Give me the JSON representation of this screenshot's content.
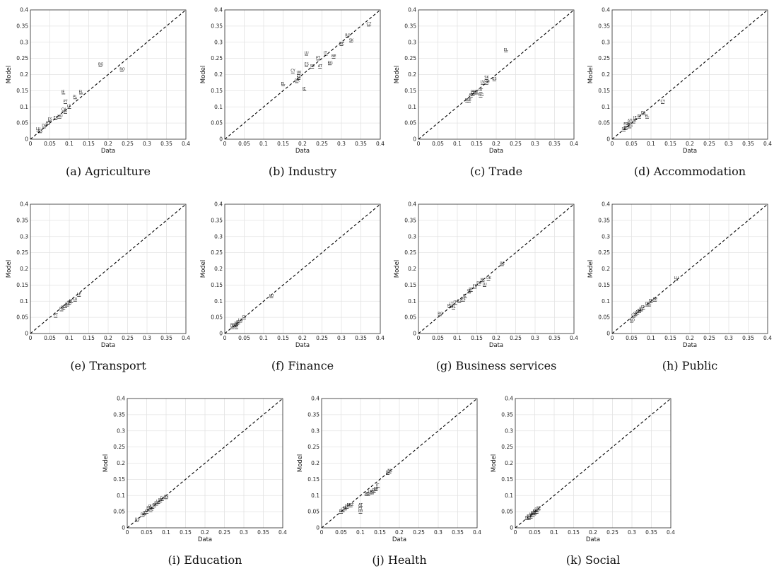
{
  "chart_data": [
    {
      "caption": "(a)  Agriculture",
      "type": "scatter",
      "xlabel": "Data",
      "ylabel": "Model",
      "xlim": [
        0,
        0.4
      ],
      "ylim": [
        0,
        0.4
      ],
      "ticks": [
        "0",
        "0.05",
        "0.1",
        "0.15",
        "0.2",
        "0.25",
        "0.3",
        "0.35",
        "0.4"
      ],
      "reference_line": "y = x (dashed)",
      "points": [
        {
          "label": "BG",
          "x": 0.18,
          "y": 0.225
        },
        {
          "label": "RO",
          "x": 0.235,
          "y": 0.21
        },
        {
          "label": "IE",
          "x": 0.085,
          "y": 0.14
        },
        {
          "label": "EL",
          "x": 0.13,
          "y": 0.14
        },
        {
          "label": "PL",
          "x": 0.115,
          "y": 0.125
        },
        {
          "label": "PT",
          "x": 0.09,
          "y": 0.11
        },
        {
          "label": "LT",
          "x": 0.1,
          "y": 0.095
        },
        {
          "label": "CY",
          "x": 0.085,
          "y": 0.085
        },
        {
          "label": "LV",
          "x": 0.09,
          "y": 0.08
        },
        {
          "label": "HU",
          "x": 0.075,
          "y": 0.065
        },
        {
          "label": "FR",
          "x": 0.065,
          "y": 0.06
        },
        {
          "label": "ES",
          "x": 0.05,
          "y": 0.055
        },
        {
          "label": "AT",
          "x": 0.045,
          "y": 0.045
        },
        {
          "label": "DE",
          "x": 0.035,
          "y": 0.035
        },
        {
          "label": "LU",
          "x": 0.02,
          "y": 0.025
        },
        {
          "label": "UK",
          "x": 0.025,
          "y": 0.02
        }
      ]
    },
    {
      "caption": "(b)  Industry",
      "type": "scatter",
      "xlabel": "Data",
      "ylabel": "Model",
      "xlim": [
        0,
        0.4
      ],
      "ylim": [
        0,
        0.4
      ],
      "ticks": [
        "0",
        "0.05",
        "0.1",
        "0.15",
        "0.2",
        "0.25",
        "0.3",
        "0.35",
        "0.4"
      ],
      "reference_line": "y = x (dashed)",
      "points": [
        {
          "label": "CZ",
          "x": 0.37,
          "y": 0.35
        },
        {
          "label": "RO",
          "x": 0.315,
          "y": 0.315
        },
        {
          "label": "SK",
          "x": 0.325,
          "y": 0.3
        },
        {
          "label": "DE",
          "x": 0.3,
          "y": 0.29
        },
        {
          "label": "LU",
          "x": 0.21,
          "y": 0.26
        },
        {
          "label": "IT",
          "x": 0.26,
          "y": 0.26
        },
        {
          "label": "PT",
          "x": 0.24,
          "y": 0.245
        },
        {
          "label": "BE",
          "x": 0.28,
          "y": 0.25
        },
        {
          "label": "BG",
          "x": 0.27,
          "y": 0.23
        },
        {
          "label": "ES",
          "x": 0.21,
          "y": 0.225
        },
        {
          "label": "SE",
          "x": 0.225,
          "y": 0.22
        },
        {
          "label": "AT",
          "x": 0.245,
          "y": 0.22
        },
        {
          "label": "CY",
          "x": 0.175,
          "y": 0.205
        },
        {
          "label": "UK",
          "x": 0.19,
          "y": 0.2
        },
        {
          "label": "FR",
          "x": 0.19,
          "y": 0.185
        },
        {
          "label": "DK",
          "x": 0.185,
          "y": 0.175
        },
        {
          "label": "EL",
          "x": 0.15,
          "y": 0.165
        },
        {
          "label": "IE",
          "x": 0.205,
          "y": 0.15
        }
      ]
    },
    {
      "caption": "(c)  Trade",
      "type": "scatter",
      "xlabel": "Data",
      "ylabel": "Model",
      "xlim": [
        0,
        0.4
      ],
      "ylim": [
        0,
        0.4
      ],
      "ticks": [
        "0",
        "0.05",
        "0.1",
        "0.15",
        "0.2",
        "0.25",
        "0.3",
        "0.35",
        "0.4"
      ],
      "reference_line": "y = x (dashed)",
      "points": [
        {
          "label": "EL",
          "x": 0.225,
          "y": 0.27
        },
        {
          "label": "SK",
          "x": 0.175,
          "y": 0.185
        },
        {
          "label": "ES",
          "x": 0.195,
          "y": 0.18
        },
        {
          "label": "LV",
          "x": 0.165,
          "y": 0.17
        },
        {
          "label": "HU",
          "x": 0.175,
          "y": 0.17
        },
        {
          "label": "RT",
          "x": 0.16,
          "y": 0.145
        },
        {
          "label": "LT",
          "x": 0.15,
          "y": 0.14
        },
        {
          "label": "BG",
          "x": 0.16,
          "y": 0.13
        },
        {
          "label": "CZ",
          "x": 0.14,
          "y": 0.135
        },
        {
          "label": "PL",
          "x": 0.14,
          "y": 0.14
        },
        {
          "label": "AT",
          "x": 0.135,
          "y": 0.13
        },
        {
          "label": "IE",
          "x": 0.125,
          "y": 0.115
        },
        {
          "label": "SE",
          "x": 0.13,
          "y": 0.115
        },
        {
          "label": "UK",
          "x": 0.145,
          "y": 0.14
        }
      ]
    },
    {
      "caption": "(d)  Accommodation",
      "type": "scatter",
      "xlabel": "Data",
      "ylabel": "Model",
      "xlim": [
        0,
        0.4
      ],
      "ylim": [
        0,
        0.4
      ],
      "ticks": [
        "0",
        "0.05",
        "0.1",
        "0.15",
        "0.2",
        "0.25",
        "0.3",
        "0.35",
        "0.4"
      ],
      "reference_line": "y = x (dashed)",
      "points": [
        {
          "label": "CY",
          "x": 0.13,
          "y": 0.11
        },
        {
          "label": "ES",
          "x": 0.08,
          "y": 0.075
        },
        {
          "label": "EL",
          "x": 0.09,
          "y": 0.065
        },
        {
          "label": "PT",
          "x": 0.07,
          "y": 0.065
        },
        {
          "label": "IE",
          "x": 0.06,
          "y": 0.06
        },
        {
          "label": "UK",
          "x": 0.055,
          "y": 0.05
        },
        {
          "label": "AT",
          "x": 0.045,
          "y": 0.05
        },
        {
          "label": "DK",
          "x": 0.04,
          "y": 0.04
        },
        {
          "label": "BG",
          "x": 0.045,
          "y": 0.035
        },
        {
          "label": "FR",
          "x": 0.035,
          "y": 0.04
        },
        {
          "label": "DE",
          "x": 0.035,
          "y": 0.03
        },
        {
          "label": "SE",
          "x": 0.03,
          "y": 0.025
        }
      ]
    },
    {
      "caption": "(e)  Transport",
      "type": "scatter",
      "xlabel": "Data",
      "ylabel": "Model",
      "xlim": [
        0,
        0.4
      ],
      "ylim": [
        0,
        0.4
      ],
      "ticks": [
        "0",
        "0.05",
        "0.1",
        "0.15",
        "0.2",
        "0.25",
        "0.3",
        "0.35",
        "0.4"
      ],
      "reference_line": "y = x (dashed)",
      "points": [
        {
          "label": "LE",
          "x": 0.125,
          "y": 0.115
        },
        {
          "label": "LU",
          "x": 0.115,
          "y": 0.1
        },
        {
          "label": "LT",
          "x": 0.105,
          "y": 0.095
        },
        {
          "label": "SK",
          "x": 0.1,
          "y": 0.09
        },
        {
          "label": "CZ",
          "x": 0.095,
          "y": 0.085
        },
        {
          "label": "AT",
          "x": 0.09,
          "y": 0.08
        },
        {
          "label": "IE",
          "x": 0.085,
          "y": 0.075
        },
        {
          "label": "FR",
          "x": 0.08,
          "y": 0.07
        },
        {
          "label": "PT",
          "x": 0.065,
          "y": 0.05
        }
      ]
    },
    {
      "caption": "(f)  Finance",
      "type": "scatter",
      "xlabel": "Data",
      "ylabel": "Model",
      "xlim": [
        0,
        0.4
      ],
      "ylim": [
        0,
        0.4
      ],
      "ticks": [
        "0",
        "0.05",
        "0.1",
        "0.15",
        "0.2",
        "0.25",
        "0.3",
        "0.35",
        "0.4"
      ],
      "reference_line": "y = x (dashed)",
      "points": [
        {
          "label": "LU",
          "x": 0.12,
          "y": 0.11
        },
        {
          "label": "CY",
          "x": 0.05,
          "y": 0.045
        },
        {
          "label": "UK",
          "x": 0.04,
          "y": 0.035
        },
        {
          "label": "IE",
          "x": 0.035,
          "y": 0.03
        },
        {
          "label": "NL",
          "x": 0.03,
          "y": 0.025
        },
        {
          "label": "DE",
          "x": 0.025,
          "y": 0.02
        },
        {
          "label": "FR",
          "x": 0.02,
          "y": 0.02
        },
        {
          "label": "AT",
          "x": 0.03,
          "y": 0.015
        },
        {
          "label": "LV",
          "x": 0.02,
          "y": 0.015
        }
      ]
    },
    {
      "caption": "(g)  Business services",
      "type": "scatter",
      "xlabel": "Data",
      "ylabel": "Model",
      "xlim": [
        0,
        0.4
      ],
      "ylim": [
        0,
        0.4
      ],
      "ticks": [
        "0",
        "0.05",
        "0.1",
        "0.15",
        "0.2",
        "0.25",
        "0.3",
        "0.35",
        "0.4"
      ],
      "reference_line": "y = x (dashed)",
      "points": [
        {
          "label": "BE",
          "x": 0.215,
          "y": 0.21
        },
        {
          "label": "UK",
          "x": 0.18,
          "y": 0.165
        },
        {
          "label": "NL",
          "x": 0.165,
          "y": 0.16
        },
        {
          "label": "LU",
          "x": 0.17,
          "y": 0.145
        },
        {
          "label": "DE",
          "x": 0.155,
          "y": 0.15
        },
        {
          "label": "FR",
          "x": 0.145,
          "y": 0.14
        },
        {
          "label": "PT",
          "x": 0.135,
          "y": 0.13
        },
        {
          "label": "SE",
          "x": 0.13,
          "y": 0.125
        },
        {
          "label": "IE",
          "x": 0.12,
          "y": 0.11
        },
        {
          "label": "ES",
          "x": 0.115,
          "y": 0.1
        },
        {
          "label": "CZ",
          "x": 0.105,
          "y": 0.095
        },
        {
          "label": "IT",
          "x": 0.095,
          "y": 0.09
        },
        {
          "label": "EL",
          "x": 0.09,
          "y": 0.075
        },
        {
          "label": "LT",
          "x": 0.085,
          "y": 0.085
        },
        {
          "label": "PL",
          "x": 0.08,
          "y": 0.08
        },
        {
          "label": "RO",
          "x": 0.055,
          "y": 0.055
        }
      ]
    },
    {
      "caption": "(h)  Public",
      "type": "scatter",
      "xlabel": "Data",
      "ylabel": "Model",
      "xlim": [
        0,
        0.4
      ],
      "ylim": [
        0,
        0.4
      ],
      "ticks": [
        "0",
        "0.05",
        "0.1",
        "0.15",
        "0.2",
        "0.25",
        "0.3",
        "0.35",
        "0.4"
      ],
      "reference_line": "y = x (dashed)",
      "points": [
        {
          "label": "LU",
          "x": 0.165,
          "y": 0.165
        },
        {
          "label": "BE",
          "x": 0.11,
          "y": 0.1
        },
        {
          "label": "FR",
          "x": 0.1,
          "y": 0.095
        },
        {
          "label": "EL",
          "x": 0.095,
          "y": 0.085
        },
        {
          "label": "DE",
          "x": 0.09,
          "y": 0.085
        },
        {
          "label": "IT",
          "x": 0.08,
          "y": 0.075
        },
        {
          "label": "PL",
          "x": 0.075,
          "y": 0.07
        },
        {
          "label": "ES",
          "x": 0.07,
          "y": 0.065
        },
        {
          "label": "AT",
          "x": 0.065,
          "y": 0.06
        },
        {
          "label": "SK",
          "x": 0.06,
          "y": 0.055
        },
        {
          "label": "CZ",
          "x": 0.055,
          "y": 0.05
        },
        {
          "label": "RO",
          "x": 0.05,
          "y": 0.035
        }
      ]
    },
    {
      "caption": "(i)  Education",
      "type": "scatter",
      "xlabel": "Data",
      "ylabel": "Model",
      "xlim": [
        0,
        0.4
      ],
      "ylim": [
        0,
        0.4
      ],
      "ticks": [
        "0",
        "0.05",
        "0.1",
        "0.15",
        "0.2",
        "0.25",
        "0.3",
        "0.35",
        "0.4"
      ],
      "reference_line": "y = x (dashed)",
      "points": [
        {
          "label": "BE",
          "x": 0.1,
          "y": 0.09
        },
        {
          "label": "DK",
          "x": 0.09,
          "y": 0.085
        },
        {
          "label": "SE",
          "x": 0.085,
          "y": 0.08
        },
        {
          "label": "UK",
          "x": 0.08,
          "y": 0.075
        },
        {
          "label": "FR",
          "x": 0.075,
          "y": 0.07
        },
        {
          "label": "PT",
          "x": 0.07,
          "y": 0.065
        },
        {
          "label": "LT",
          "x": 0.065,
          "y": 0.06
        },
        {
          "label": "PL",
          "x": 0.06,
          "y": 0.06
        },
        {
          "label": "ES",
          "x": 0.055,
          "y": 0.055
        },
        {
          "label": "DE",
          "x": 0.06,
          "y": 0.05
        },
        {
          "label": "AT",
          "x": 0.05,
          "y": 0.045
        },
        {
          "label": "IT",
          "x": 0.045,
          "y": 0.04
        },
        {
          "label": "RO",
          "x": 0.04,
          "y": 0.035
        },
        {
          "label": "US",
          "x": 0.025,
          "y": 0.02
        }
      ]
    },
    {
      "caption": "(j)  Health",
      "type": "scatter",
      "xlabel": "Data",
      "ylabel": "Model",
      "xlim": [
        0,
        0.4
      ],
      "ylim": [
        0,
        0.4
      ],
      "ticks": [
        "0",
        "0.05",
        "0.1",
        "0.15",
        "0.2",
        "0.25",
        "0.3",
        "0.35",
        "0.4"
      ],
      "reference_line": "y = x (dashed)",
      "points": [
        {
          "label": "NL",
          "x": 0.175,
          "y": 0.17
        },
        {
          "label": "DK",
          "x": 0.17,
          "y": 0.165
        },
        {
          "label": "IT",
          "x": 0.145,
          "y": 0.125
        },
        {
          "label": "FR",
          "x": 0.14,
          "y": 0.115
        },
        {
          "label": "DE",
          "x": 0.135,
          "y": 0.11
        },
        {
          "label": "BE",
          "x": 0.13,
          "y": 0.105
        },
        {
          "label": "UK",
          "x": 0.125,
          "y": 0.105
        },
        {
          "label": "IE",
          "x": 0.12,
          "y": 0.1
        },
        {
          "label": "SE",
          "x": 0.115,
          "y": 0.1
        },
        {
          "label": "CZ",
          "x": 0.075,
          "y": 0.065
        },
        {
          "label": "ES",
          "x": 0.07,
          "y": 0.065
        },
        {
          "label": "AT",
          "x": 0.1,
          "y": 0.065
        },
        {
          "label": "PT",
          "x": 0.1,
          "y": 0.055
        },
        {
          "label": "LU",
          "x": 0.1,
          "y": 0.045
        },
        {
          "label": "PL",
          "x": 0.065,
          "y": 0.06
        },
        {
          "label": "EL",
          "x": 0.06,
          "y": 0.055
        },
        {
          "label": "LT",
          "x": 0.055,
          "y": 0.05
        },
        {
          "label": "RO",
          "x": 0.05,
          "y": 0.045
        }
      ]
    },
    {
      "caption": "(k)  Social",
      "type": "scatter",
      "xlabel": "Data",
      "ylabel": "Model",
      "xlim": [
        0,
        0.4
      ],
      "ylim": [
        0,
        0.4
      ],
      "ticks": [
        "0",
        "0.05",
        "0.1",
        "0.15",
        "0.2",
        "0.25",
        "0.3",
        "0.35",
        "0.4"
      ],
      "reference_line": "y = x (dashed)",
      "points": [
        {
          "label": "SE",
          "x": 0.06,
          "y": 0.055
        },
        {
          "label": "DK",
          "x": 0.055,
          "y": 0.05
        },
        {
          "label": "NL",
          "x": 0.055,
          "y": 0.045
        },
        {
          "label": "FR",
          "x": 0.05,
          "y": 0.045
        },
        {
          "label": "BE",
          "x": 0.05,
          "y": 0.04
        },
        {
          "label": "DE",
          "x": 0.045,
          "y": 0.04
        },
        {
          "label": "UK",
          "x": 0.045,
          "y": 0.035
        },
        {
          "label": "AT",
          "x": 0.04,
          "y": 0.035
        },
        {
          "label": "IE",
          "x": 0.04,
          "y": 0.03
        },
        {
          "label": "FI",
          "x": 0.035,
          "y": 0.03
        },
        {
          "label": "LU",
          "x": 0.035,
          "y": 0.025
        },
        {
          "label": "IT",
          "x": 0.03,
          "y": 0.025
        }
      ]
    }
  ]
}
